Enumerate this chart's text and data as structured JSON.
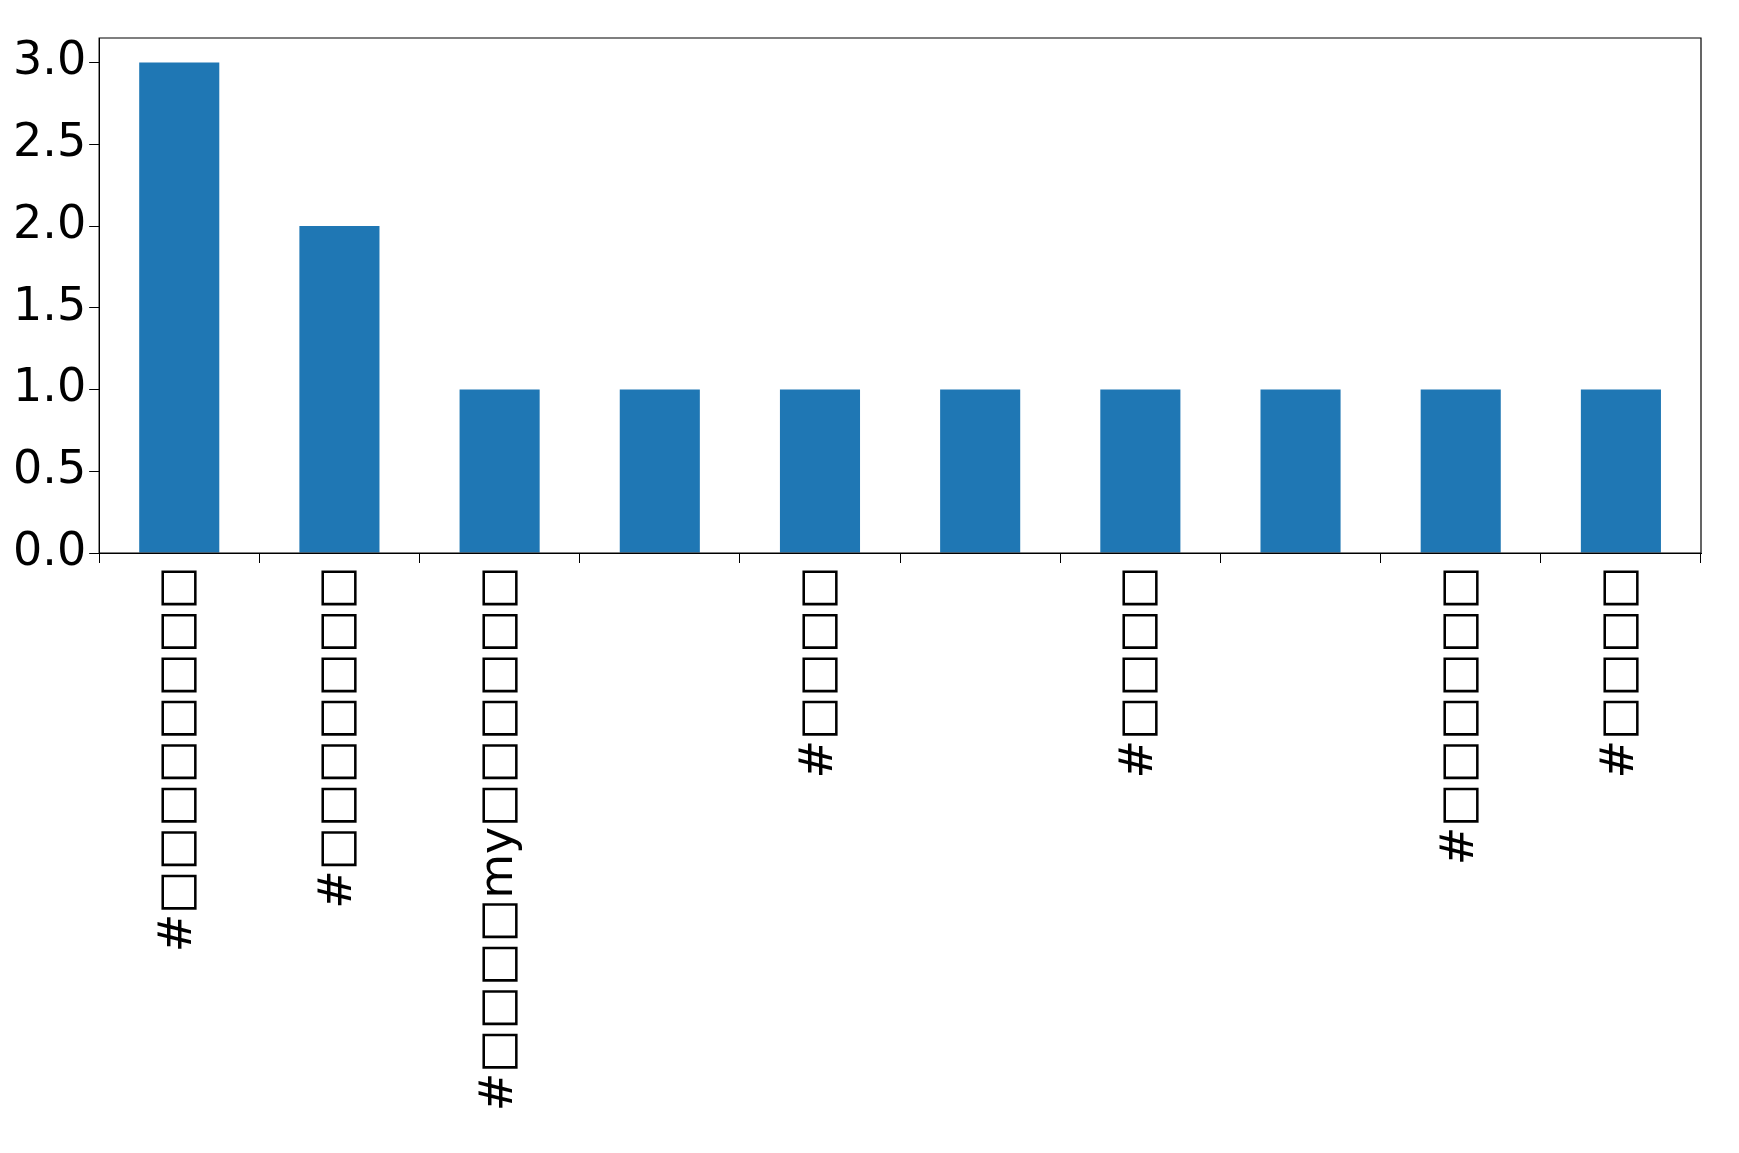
{
  "chart_data": {
    "type": "bar",
    "categories": [
      "#□□□□□□□□",
      "#□□□□□□□",
      "#□□□□my□□□□□□",
      null,
      "#□□□□",
      null,
      "#□□□□",
      null,
      "#□□□□□□",
      "#□□□□"
    ],
    "values": [
      3,
      2,
      1,
      1,
      1,
      1,
      1,
      1,
      1,
      1
    ],
    "color": "#1f77b4",
    "ylim": [
      0,
      3.15
    ],
    "yticks": [
      {
        "value": 0,
        "label": "0.0"
      },
      {
        "value": 0.5,
        "label": "0.5"
      },
      {
        "value": 1,
        "label": "1.0"
      },
      {
        "value": 1.5,
        "label": "1.5"
      },
      {
        "value": 2,
        "label": "2.0"
      },
      {
        "value": 2.5,
        "label": "2.5"
      },
      {
        "value": 3,
        "label": "3.0"
      }
    ],
    "grid": false,
    "legend": false
  }
}
